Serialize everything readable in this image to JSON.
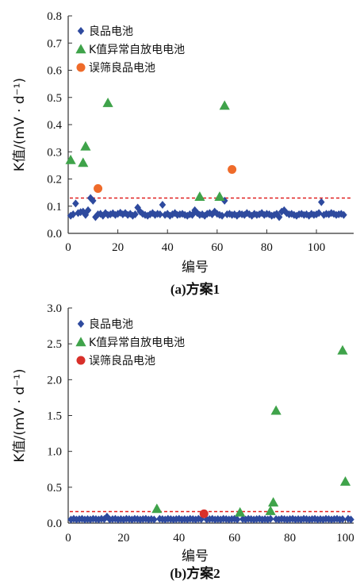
{
  "chart_data": [
    {
      "type": "scatter",
      "caption": "(a)方案1",
      "xlabel": "编号",
      "ylabel": "K值/(mV · d⁻¹)",
      "xlim": [
        0,
        115
      ],
      "ylim": [
        0,
        0.8
      ],
      "xticks": [
        "0",
        "20",
        "40",
        "60",
        "80",
        "100"
      ],
      "yticks": [
        "0.0",
        "0.1",
        "0.2",
        "0.3",
        "0.4",
        "0.5",
        "0.6",
        "0.7",
        "0.8"
      ],
      "threshold": 0.13,
      "legend_position": "top-left",
      "series": [
        {
          "name": "良品电池",
          "marker": "diamond",
          "color": "#2e4a9e",
          "points": [
            [
              1,
              0.065
            ],
            [
              2,
              0.07
            ],
            [
              3,
              0.11
            ],
            [
              4,
              0.075
            ],
            [
              5,
              0.078
            ],
            [
              6,
              0.08
            ],
            [
              7,
              0.068
            ],
            [
              8,
              0.085
            ],
            [
              9,
              0.13
            ],
            [
              10,
              0.12
            ],
            [
              11,
              0.06
            ],
            [
              12,
              0.07
            ],
            [
              13,
              0.072
            ],
            [
              14,
              0.065
            ],
            [
              15,
              0.075
            ],
            [
              16,
              0.068
            ],
            [
              17,
              0.07
            ],
            [
              18,
              0.074
            ],
            [
              19,
              0.068
            ],
            [
              20,
              0.072
            ],
            [
              21,
              0.076
            ],
            [
              22,
              0.07
            ],
            [
              23,
              0.075
            ],
            [
              24,
              0.068
            ],
            [
              25,
              0.072
            ],
            [
              26,
              0.065
            ],
            [
              27,
              0.07
            ],
            [
              28,
              0.095
            ],
            [
              29,
              0.08
            ],
            [
              30,
              0.072
            ],
            [
              31,
              0.068
            ],
            [
              32,
              0.065
            ],
            [
              33,
              0.07
            ],
            [
              34,
              0.075
            ],
            [
              35,
              0.068
            ],
            [
              36,
              0.072
            ],
            [
              37,
              0.07
            ],
            [
              38,
              0.105
            ],
            [
              39,
              0.068
            ],
            [
              40,
              0.072
            ],
            [
              41,
              0.065
            ],
            [
              42,
              0.07
            ],
            [
              43,
              0.075
            ],
            [
              44,
              0.068
            ],
            [
              45,
              0.07
            ],
            [
              46,
              0.072
            ],
            [
              47,
              0.068
            ],
            [
              48,
              0.065
            ],
            [
              49,
              0.07
            ],
            [
              50,
              0.068
            ],
            [
              51,
              0.085
            ],
            [
              52,
              0.075
            ],
            [
              53,
              0.068
            ],
            [
              54,
              0.07
            ],
            [
              55,
              0.065
            ],
            [
              56,
              0.072
            ],
            [
              57,
              0.075
            ],
            [
              58,
              0.07
            ],
            [
              59,
              0.08
            ],
            [
              60,
              0.072
            ],
            [
              61,
              0.068
            ],
            [
              62,
              0.065
            ],
            [
              63,
              0.12
            ],
            [
              64,
              0.07
            ],
            [
              65,
              0.072
            ],
            [
              66,
              0.068
            ],
            [
              67,
              0.07
            ],
            [
              68,
              0.065
            ],
            [
              69,
              0.072
            ],
            [
              70,
              0.07
            ],
            [
              71,
              0.068
            ],
            [
              72,
              0.075
            ],
            [
              73,
              0.07
            ],
            [
              74,
              0.065
            ],
            [
              75,
              0.072
            ],
            [
              76,
              0.068
            ],
            [
              77,
              0.07
            ],
            [
              78,
              0.075
            ],
            [
              79,
              0.068
            ],
            [
              80,
              0.072
            ],
            [
              81,
              0.07
            ],
            [
              82,
              0.065
            ],
            [
              83,
              0.068
            ],
            [
              84,
              0.072
            ],
            [
              85,
              0.06
            ],
            [
              86,
              0.08
            ],
            [
              87,
              0.085
            ],
            [
              88,
              0.075
            ],
            [
              89,
              0.07
            ],
            [
              90,
              0.072
            ],
            [
              91,
              0.068
            ],
            [
              92,
              0.065
            ],
            [
              93,
              0.07
            ],
            [
              94,
              0.072
            ],
            [
              95,
              0.068
            ],
            [
              96,
              0.07
            ],
            [
              97,
              0.065
            ],
            [
              98,
              0.072
            ],
            [
              99,
              0.068
            ],
            [
              100,
              0.07
            ],
            [
              101,
              0.075
            ],
            [
              102,
              0.115
            ],
            [
              103,
              0.068
            ],
            [
              104,
              0.072
            ],
            [
              105,
              0.07
            ],
            [
              106,
              0.075
            ],
            [
              107,
              0.072
            ],
            [
              108,
              0.068
            ],
            [
              109,
              0.07
            ],
            [
              110,
              0.072
            ],
            [
              111,
              0.068
            ]
          ]
        },
        {
          "name": "K值异常自放电电池",
          "marker": "triangle",
          "color": "#3fa34a",
          "points": [
            [
              1,
              0.27
            ],
            [
              6,
              0.26
            ],
            [
              7,
              0.32
            ],
            [
              16,
              0.48
            ],
            [
              53,
              0.135
            ],
            [
              61,
              0.135
            ],
            [
              63,
              0.47
            ]
          ]
        },
        {
          "name": "误筛良品电池",
          "marker": "circle",
          "color": "#ef6b2a",
          "points": [
            [
              12,
              0.165
            ],
            [
              66,
              0.235
            ]
          ]
        }
      ]
    },
    {
      "type": "scatter",
      "caption": "(b)方案2",
      "xlabel": "编号",
      "ylabel": "K值/(mV · d⁻¹)",
      "xlim": [
        0,
        103
      ],
      "ylim": [
        0,
        3.0
      ],
      "xticks": [
        "0",
        "20",
        "40",
        "60",
        "80",
        "100"
      ],
      "yticks": [
        "0.0",
        "0.5",
        "1.0",
        "1.5",
        "2.0",
        "2.5",
        "3.0"
      ],
      "threshold": 0.16,
      "legend_position": "top-left",
      "series": [
        {
          "name": "良品电池",
          "marker": "diamond",
          "color": "#2e4a9e",
          "points": [
            [
              1,
              0.05
            ],
            [
              2,
              0.06
            ],
            [
              3,
              0.05
            ],
            [
              4,
              0.055
            ],
            [
              5,
              0.06
            ],
            [
              6,
              0.05
            ],
            [
              7,
              0.055
            ],
            [
              8,
              0.05
            ],
            [
              9,
              0.06
            ],
            [
              10,
              0.055
            ],
            [
              11,
              0.05
            ],
            [
              12,
              0.06
            ],
            [
              13,
              0.055
            ],
            [
              14,
              0.09
            ],
            [
              15,
              0.05
            ],
            [
              16,
              0.055
            ],
            [
              17,
              0.06
            ],
            [
              18,
              0.05
            ],
            [
              19,
              0.055
            ],
            [
              20,
              0.05
            ],
            [
              21,
              0.06
            ],
            [
              22,
              0.055
            ],
            [
              23,
              0.05
            ],
            [
              24,
              0.06
            ],
            [
              25,
              0.055
            ],
            [
              26,
              0.05
            ],
            [
              27,
              0.055
            ],
            [
              28,
              0.06
            ],
            [
              29,
              0.05
            ],
            [
              30,
              0.055
            ],
            [
              31,
              0.05
            ],
            [
              33,
              0.06
            ],
            [
              34,
              0.055
            ],
            [
              35,
              0.05
            ],
            [
              36,
              0.06
            ],
            [
              37,
              0.055
            ],
            [
              38,
              0.05
            ],
            [
              39,
              0.055
            ],
            [
              40,
              0.06
            ],
            [
              41,
              0.05
            ],
            [
              42,
              0.055
            ],
            [
              43,
              0.05
            ],
            [
              44,
              0.06
            ],
            [
              45,
              0.055
            ],
            [
              46,
              0.05
            ],
            [
              47,
              0.06
            ],
            [
              48,
              0.055
            ],
            [
              50,
              0.05
            ],
            [
              51,
              0.055
            ],
            [
              52,
              0.06
            ],
            [
              53,
              0.05
            ],
            [
              54,
              0.055
            ],
            [
              55,
              0.05
            ],
            [
              56,
              0.06
            ],
            [
              57,
              0.055
            ],
            [
              58,
              0.05
            ],
            [
              59,
              0.055
            ],
            [
              60,
              0.06
            ],
            [
              61,
              0.05
            ],
            [
              63,
              0.055
            ],
            [
              64,
              0.05
            ],
            [
              65,
              0.06
            ],
            [
              66,
              0.055
            ],
            [
              67,
              0.05
            ],
            [
              68,
              0.055
            ],
            [
              69,
              0.06
            ],
            [
              70,
              0.05
            ],
            [
              71,
              0.055
            ],
            [
              72,
              0.05
            ],
            [
              73,
              0.06
            ],
            [
              75,
              0.055
            ],
            [
              76,
              0.05
            ],
            [
              77,
              0.06
            ],
            [
              78,
              0.055
            ],
            [
              79,
              0.05
            ],
            [
              80,
              0.055
            ],
            [
              81,
              0.06
            ],
            [
              82,
              0.05
            ],
            [
              83,
              0.055
            ],
            [
              84,
              0.05
            ],
            [
              85,
              0.06
            ],
            [
              86,
              0.055
            ],
            [
              87,
              0.05
            ],
            [
              88,
              0.055
            ],
            [
              89,
              0.06
            ],
            [
              90,
              0.05
            ],
            [
              91,
              0.055
            ],
            [
              92,
              0.05
            ],
            [
              93,
              0.06
            ],
            [
              94,
              0.055
            ],
            [
              95,
              0.05
            ],
            [
              96,
              0.055
            ],
            [
              97,
              0.06
            ],
            [
              98,
              0.05
            ],
            [
              99,
              0.055
            ],
            [
              101,
              0.06
            ],
            [
              102,
              0.05
            ]
          ]
        },
        {
          "name": "K值异常自放电电池",
          "marker": "triangle",
          "color": "#3fa34a",
          "points": [
            [
              32,
              0.2
            ],
            [
              62,
              0.15
            ],
            [
              73,
              0.17
            ],
            [
              74,
              0.29
            ],
            [
              75,
              1.57
            ],
            [
              99,
              2.41
            ],
            [
              100,
              0.58
            ]
          ]
        },
        {
          "name": "误筛良品电池",
          "marker": "circle",
          "color": "#d8302a",
          "points": [
            [
              49,
              0.13
            ]
          ]
        }
      ]
    }
  ]
}
